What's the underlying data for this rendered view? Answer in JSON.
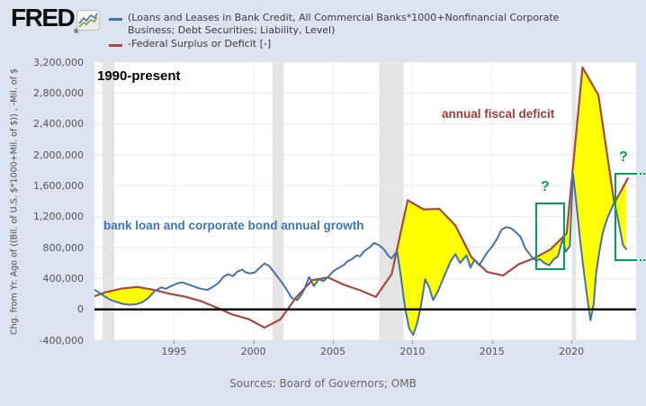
{
  "header": {
    "logo_text": "FRED",
    "logo_registered": "®",
    "legend": [
      {
        "label_line1": "(Loans and Leases in Bank Credit, All Commercial Banks*1000+Nonfinancial Corporate",
        "label_line2": "Business; Debt Securities; Liability, Level)",
        "color": "#4572a7"
      },
      {
        "label": "-Federal Surplus or Deficit [-]",
        "color": "#aa4643"
      }
    ]
  },
  "y_axis_label": "Chg. from Yr. Ago of ((Bil. of U.S. $*1000+Mil. of $)) , -Mil. of $",
  "annotations": {
    "range_label": "1990-present",
    "growth_label": "bank loan and corporate bond annual growth",
    "deficit_label": "annual fiscal deficit",
    "question_1": "?",
    "question_2": "?",
    "green_color": "#00a34f"
  },
  "sources": "Sources: Board of Governors; OMB",
  "chart_data": {
    "type": "line",
    "xlim": [
      1990,
      2024.07
    ],
    "ylim": [
      -400000,
      3200000
    ],
    "grid": "on",
    "y_ticks": [
      3200000,
      2800000,
      2400000,
      2000000,
      1600000,
      1200000,
      800000,
      400000,
      0,
      -400000
    ],
    "x_ticks": [
      1995,
      2000,
      2005,
      2010,
      2015,
      2020
    ],
    "zero_line": true,
    "fill_between_color": "#ffff00",
    "fill_rule": "deficit_above_growth",
    "recession_bars": [
      [
        1990.5,
        1991.25
      ],
      [
        2001.2,
        2001.9
      ],
      [
        2007.92,
        2009.45
      ],
      [
        2020.05,
        2020.3
      ]
    ],
    "series": [
      {
        "name": "Loans and Leases in Bank Credit + Nonfinancial Corporate Debt Securities, Chg. from Yr. Ago",
        "color": "#4572a7",
        "points": [
          [
            1990.0,
            255000
          ],
          [
            1990.3,
            215000
          ],
          [
            1990.7,
            160000
          ],
          [
            1991.0,
            125000
          ],
          [
            1991.4,
            95000
          ],
          [
            1991.8,
            70000
          ],
          [
            1992.2,
            60000
          ],
          [
            1992.6,
            65000
          ],
          [
            1993.0,
            90000
          ],
          [
            1993.4,
            150000
          ],
          [
            1993.8,
            240000
          ],
          [
            1994.2,
            285000
          ],
          [
            1994.5,
            265000
          ],
          [
            1994.8,
            300000
          ],
          [
            1995.2,
            335000
          ],
          [
            1995.5,
            350000
          ],
          [
            1995.8,
            330000
          ],
          [
            1996.1,
            308000
          ],
          [
            1996.5,
            278000
          ],
          [
            1996.8,
            262000
          ],
          [
            1997.1,
            253000
          ],
          [
            1997.4,
            285000
          ],
          [
            1997.8,
            340000
          ],
          [
            1998.1,
            420000
          ],
          [
            1998.4,
            455000
          ],
          [
            1998.7,
            430000
          ],
          [
            1999.0,
            490000
          ],
          [
            1999.3,
            515000
          ],
          [
            1999.5,
            480000
          ],
          [
            1999.8,
            465000
          ],
          [
            2000.1,
            480000
          ],
          [
            2000.4,
            540000
          ],
          [
            2000.7,
            595000
          ],
          [
            2001.0,
            560000
          ],
          [
            2001.3,
            480000
          ],
          [
            2001.6,
            400000
          ],
          [
            2002.0,
            285000
          ],
          [
            2002.4,
            150000
          ],
          [
            2002.75,
            120000
          ],
          [
            2003.0,
            185000
          ],
          [
            2003.2,
            260000
          ],
          [
            2003.5,
            420000
          ],
          [
            2003.8,
            300000
          ],
          [
            2004.1,
            390000
          ],
          [
            2004.4,
            365000
          ],
          [
            2004.7,
            420000
          ],
          [
            2005.0,
            490000
          ],
          [
            2005.3,
            530000
          ],
          [
            2005.7,
            575000
          ],
          [
            2005.9,
            620000
          ],
          [
            2006.2,
            650000
          ],
          [
            2006.5,
            700000
          ],
          [
            2006.7,
            685000
          ],
          [
            2007.0,
            760000
          ],
          [
            2007.3,
            800000
          ],
          [
            2007.6,
            860000
          ],
          [
            2007.9,
            830000
          ],
          [
            2008.2,
            780000
          ],
          [
            2008.5,
            690000
          ],
          [
            2008.7,
            660000
          ],
          [
            2008.9,
            720000
          ],
          [
            2009.05,
            740000
          ],
          [
            2009.3,
            390000
          ],
          [
            2009.55,
            0
          ],
          [
            2009.8,
            -250000
          ],
          [
            2010.05,
            -330000
          ],
          [
            2010.3,
            -180000
          ],
          [
            2010.55,
            60000
          ],
          [
            2010.8,
            390000
          ],
          [
            2011.05,
            290000
          ],
          [
            2011.3,
            120000
          ],
          [
            2011.6,
            230000
          ],
          [
            2012.0,
            430000
          ],
          [
            2012.4,
            620000
          ],
          [
            2012.7,
            715000
          ],
          [
            2013.0,
            600000
          ],
          [
            2013.4,
            700000
          ],
          [
            2013.65,
            540000
          ],
          [
            2013.9,
            640000
          ],
          [
            2014.2,
            570000
          ],
          [
            2014.7,
            735000
          ],
          [
            2015.0,
            810000
          ],
          [
            2015.3,
            905000
          ],
          [
            2015.6,
            1030000
          ],
          [
            2015.9,
            1065000
          ],
          [
            2016.2,
            1050000
          ],
          [
            2016.5,
            1000000
          ],
          [
            2016.8,
            940000
          ],
          [
            2017.1,
            790000
          ],
          [
            2017.5,
            680000
          ],
          [
            2017.8,
            625000
          ],
          [
            2018.0,
            650000
          ],
          [
            2018.3,
            600000
          ],
          [
            2018.6,
            570000
          ],
          [
            2018.9,
            650000
          ],
          [
            2019.15,
            685000
          ],
          [
            2019.45,
            910000
          ],
          [
            2019.65,
            745000
          ],
          [
            2019.9,
            820000
          ],
          [
            2020.1,
            1760000
          ],
          [
            2020.35,
            1300000
          ],
          [
            2020.55,
            890000
          ],
          [
            2020.8,
            460000
          ],
          [
            2021.0,
            150000
          ],
          [
            2021.2,
            -140000
          ],
          [
            2021.4,
            70000
          ],
          [
            2021.55,
            460000
          ],
          [
            2021.75,
            735000
          ],
          [
            2021.95,
            970000
          ],
          [
            2022.1,
            1080000
          ],
          [
            2022.3,
            1200000
          ],
          [
            2022.5,
            1290000
          ],
          [
            2022.7,
            1390000
          ],
          [
            2022.9,
            1200000
          ],
          [
            2023.1,
            990000
          ],
          [
            2023.25,
            830000
          ],
          [
            2023.45,
            780000
          ]
        ]
      },
      {
        "name": "-Federal Surplus or Deficit",
        "color": "#aa4643",
        "points": [
          [
            1990.0,
            170000
          ],
          [
            1990.7,
            221000
          ],
          [
            1991.7,
            269000
          ],
          [
            1992.7,
            290000
          ],
          [
            1993.7,
            255000
          ],
          [
            1994.7,
            203000
          ],
          [
            1995.7,
            164000
          ],
          [
            1996.7,
            107000
          ],
          [
            1997.7,
            22000
          ],
          [
            1998.7,
            -69000
          ],
          [
            1999.7,
            -126000
          ],
          [
            2000.7,
            -236000
          ],
          [
            2001.7,
            -128000
          ],
          [
            2002.7,
            158000
          ],
          [
            2003.7,
            378000
          ],
          [
            2004.7,
            413000
          ],
          [
            2005.7,
            318000
          ],
          [
            2006.7,
            248000
          ],
          [
            2007.7,
            161000
          ],
          [
            2008.7,
            459000
          ],
          [
            2009.7,
            1413000
          ],
          [
            2010.7,
            1294000
          ],
          [
            2011.7,
            1300000
          ],
          [
            2012.7,
            1087000
          ],
          [
            2013.7,
            680000
          ],
          [
            2014.7,
            485000
          ],
          [
            2015.7,
            438000
          ],
          [
            2016.7,
            585000
          ],
          [
            2017.7,
            665000
          ],
          [
            2018.7,
            779000
          ],
          [
            2019.7,
            984000
          ],
          [
            2020.7,
            3132000
          ],
          [
            2021.7,
            2772000
          ],
          [
            2022.7,
            1375000
          ],
          [
            2023.55,
            1695000
          ]
        ]
      }
    ]
  }
}
